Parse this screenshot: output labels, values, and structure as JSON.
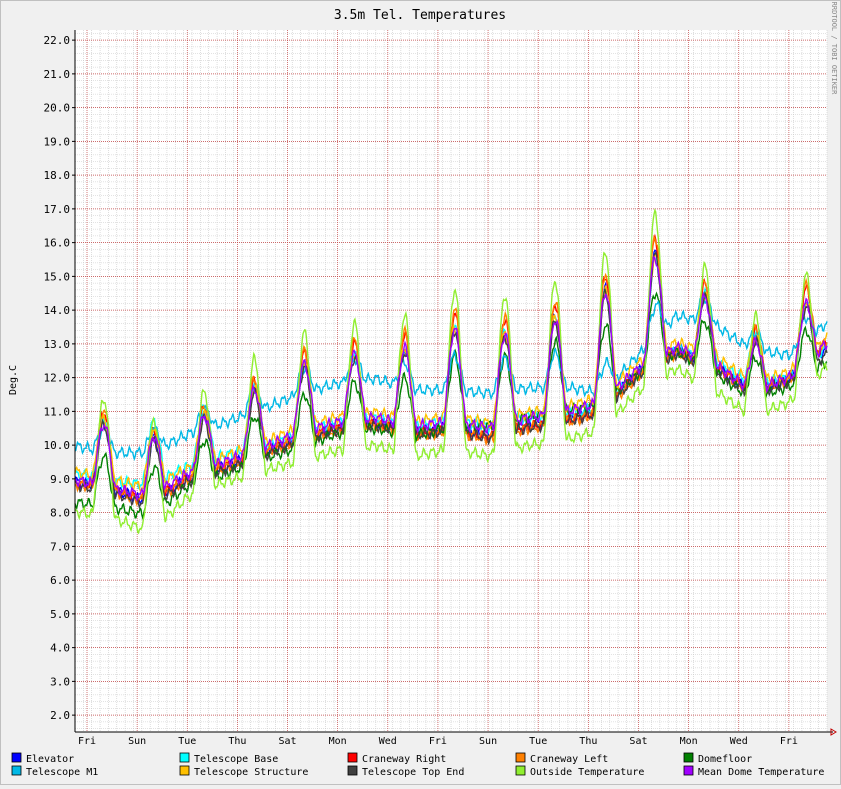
{
  "chart_data": {
    "type": "line",
    "title": "3.5m Tel. Temperatures",
    "ylabel": "Deg.C",
    "watermark": "RRDTOOL / TOBI OETIKER",
    "ylim": [
      1.5,
      22.3
    ],
    "yticks": [
      "2.0",
      "3.0",
      "4.0",
      "5.0",
      "6.0",
      "7.0",
      "8.0",
      "9.0",
      "10.0",
      "11.0",
      "12.0",
      "13.0",
      "14.0",
      "15.0",
      "16.0",
      "17.0",
      "18.0",
      "19.0",
      "20.0",
      "21.0",
      "22.0"
    ],
    "ytick_values": [
      2,
      3,
      4,
      5,
      6,
      7,
      8,
      9,
      10,
      11,
      12,
      13,
      14,
      15,
      16,
      17,
      18,
      19,
      20,
      21,
      22
    ],
    "x_range_days": [
      0,
      15
    ],
    "xtick_labels": [
      "Fri",
      "Sun",
      "Tue",
      "Thu",
      "Sat",
      "Mon",
      "Wed",
      "Fri",
      "Sun",
      "Tue",
      "Thu",
      "Sat",
      "Mon",
      "Wed",
      "Fri"
    ],
    "xtick_days": [
      0,
      1,
      2,
      3,
      4,
      5,
      6,
      7,
      8,
      9,
      10,
      11,
      12,
      13,
      14
    ],
    "grid": true,
    "legend_position": "bottom",
    "series": [
      {
        "name": "Elevator",
        "color": "#0000ff",
        "base": [
          9.6,
          9.4,
          9.0,
          9.6,
          10.0,
          10.5,
          11.0,
          11.3,
          11.4,
          11.3,
          11.6,
          11.4,
          11.6,
          11.9,
          12.3,
          13.5,
          13.8,
          13.0,
          12.1,
          12.6,
          13.6
        ],
        "amp": [
          1.5,
          1.6,
          1.5,
          1.3,
          1.4,
          1.6,
          1.7,
          1.7,
          1.6,
          2.0,
          2.4,
          2.4,
          2.2,
          2.5,
          2.7,
          2.9,
          2.2,
          1.4,
          1.2,
          1.4,
          1.6
        ]
      },
      {
        "name": "Telescope Base",
        "color": "#00ffff",
        "base": [
          9.8,
          9.6,
          9.5,
          9.9,
          10.3,
          10.6,
          11.1,
          11.4,
          11.5,
          11.4,
          11.8,
          11.6,
          11.8,
          12.0,
          12.3,
          13.4,
          13.8,
          13.1,
          12.3,
          12.6,
          13.6
        ],
        "amp": [
          1.4,
          1.5,
          1.5,
          1.2,
          1.3,
          1.5,
          1.6,
          1.6,
          1.5,
          1.9,
          2.3,
          2.3,
          2.1,
          2.4,
          2.6,
          2.8,
          2.1,
          1.3,
          1.1,
          1.3,
          1.5
        ]
      },
      {
        "name": "Craneway Right",
        "color": "#ff0000",
        "base": [
          9.7,
          9.5,
          9.1,
          9.7,
          10.1,
          10.6,
          11.1,
          11.4,
          11.5,
          11.4,
          11.7,
          11.5,
          11.7,
          12.0,
          12.4,
          13.6,
          13.9,
          13.1,
          12.2,
          12.7,
          13.9
        ],
        "amp": [
          1.8,
          1.8,
          1.7,
          1.5,
          1.6,
          1.8,
          2.0,
          2.0,
          1.9,
          2.4,
          2.8,
          2.8,
          2.6,
          2.9,
          3.1,
          3.3,
          2.5,
          1.6,
          1.4,
          1.6,
          1.9
        ]
      },
      {
        "name": "Craneway Left",
        "color": "#ff8000",
        "base": [
          9.7,
          9.5,
          9.1,
          9.7,
          10.1,
          10.6,
          11.1,
          11.4,
          11.5,
          11.4,
          11.7,
          11.5,
          11.7,
          12.0,
          12.4,
          13.6,
          13.9,
          13.1,
          12.2,
          12.7,
          14.0
        ],
        "amp": [
          1.9,
          1.9,
          1.8,
          1.6,
          1.7,
          1.9,
          2.1,
          2.1,
          2.0,
          2.5,
          2.9,
          2.9,
          2.7,
          3.0,
          3.2,
          3.4,
          2.6,
          1.7,
          1.5,
          1.7,
          2.0
        ]
      },
      {
        "name": "Domefloor",
        "color": "#008000",
        "base": [
          8.8,
          8.7,
          8.4,
          9.2,
          9.6,
          10.1,
          10.5,
          10.9,
          11.0,
          10.9,
          11.3,
          11.3,
          11.5,
          11.8,
          12.0,
          13.0,
          13.4,
          12.6,
          11.8,
          12.2,
          13.0
        ],
        "amp": [
          1.1,
          1.2,
          1.1,
          0.9,
          1.0,
          1.1,
          1.2,
          1.2,
          1.1,
          1.4,
          1.7,
          1.6,
          1.5,
          1.7,
          1.8,
          1.9,
          1.4,
          1.0,
          0.9,
          1.0,
          1.1
        ]
      },
      {
        "name": "Telescope M1",
        "color": "#00b8e6",
        "base": [
          10.2,
          10.0,
          10.0,
          10.5,
          10.9,
          11.3,
          11.8,
          12.1,
          12.2,
          11.9,
          12.0,
          11.9,
          12.0,
          12.1,
          11.8,
          13.0,
          14.2,
          13.8,
          13.0,
          12.9,
          13.9
        ],
        "amp": [
          0.5,
          0.5,
          0.5,
          0.4,
          0.5,
          0.5,
          0.6,
          0.6,
          0.5,
          0.6,
          0.8,
          0.8,
          0.7,
          0.8,
          0.6,
          0.7,
          0.8,
          0.5,
          0.4,
          0.5,
          0.6
        ]
      },
      {
        "name": "Telescope Structure",
        "color": "#ffc000",
        "base": [
          9.8,
          9.6,
          9.3,
          9.8,
          10.2,
          10.7,
          11.2,
          11.5,
          11.6,
          11.5,
          11.8,
          11.6,
          11.8,
          12.1,
          12.5,
          13.6,
          13.9,
          13.2,
          12.3,
          12.7,
          13.8
        ],
        "amp": [
          1.3,
          1.4,
          1.3,
          1.1,
          1.2,
          1.4,
          1.5,
          1.5,
          1.4,
          1.8,
          2.1,
          2.1,
          1.9,
          2.2,
          2.4,
          2.6,
          1.9,
          1.2,
          1.0,
          1.2,
          1.4
        ]
      },
      {
        "name": "Telescope Top End",
        "color": "#404040",
        "base": [
          9.5,
          9.3,
          8.9,
          9.5,
          9.9,
          10.4,
          10.9,
          11.2,
          11.3,
          11.2,
          11.5,
          11.3,
          11.5,
          11.8,
          12.2,
          13.4,
          13.7,
          12.9,
          12.0,
          12.5,
          13.4
        ],
        "amp": [
          1.5,
          1.6,
          1.5,
          1.3,
          1.4,
          1.6,
          1.7,
          1.7,
          1.6,
          2.0,
          2.4,
          2.4,
          2.2,
          2.5,
          2.7,
          2.9,
          2.2,
          1.4,
          1.2,
          1.4,
          1.6
        ]
      },
      {
        "name": "Outside Temperature",
        "color": "#90ee30",
        "base": [
          9.3,
          9.1,
          8.6,
          9.5,
          10.0,
          10.5,
          10.9,
          11.2,
          11.3,
          11.2,
          11.6,
          11.4,
          11.6,
          11.9,
          12.3,
          13.6,
          13.8,
          12.8,
          11.9,
          12.4,
          13.6
        ],
        "amp": [
          2.8,
          2.8,
          2.6,
          2.3,
          2.4,
          2.8,
          3.0,
          3.0,
          2.9,
          3.4,
          3.8,
          3.8,
          3.6,
          3.9,
          4.1,
          4.4,
          3.4,
          2.6,
          2.3,
          2.5,
          2.8
        ]
      },
      {
        "name": "Mean Dome Temperature",
        "color": "#a000ff",
        "base": [
          9.6,
          9.4,
          9.1,
          9.7,
          10.1,
          10.6,
          11.1,
          11.4,
          11.5,
          11.4,
          11.7,
          11.5,
          11.7,
          12.0,
          12.4,
          13.5,
          13.8,
          13.0,
          12.1,
          12.6,
          13.7
        ],
        "amp": [
          1.4,
          1.5,
          1.4,
          1.2,
          1.3,
          1.5,
          1.6,
          1.6,
          1.5,
          1.9,
          2.2,
          2.2,
          2.0,
          2.3,
          2.5,
          2.7,
          2.0,
          1.3,
          1.1,
          1.3,
          1.5
        ]
      }
    ]
  }
}
